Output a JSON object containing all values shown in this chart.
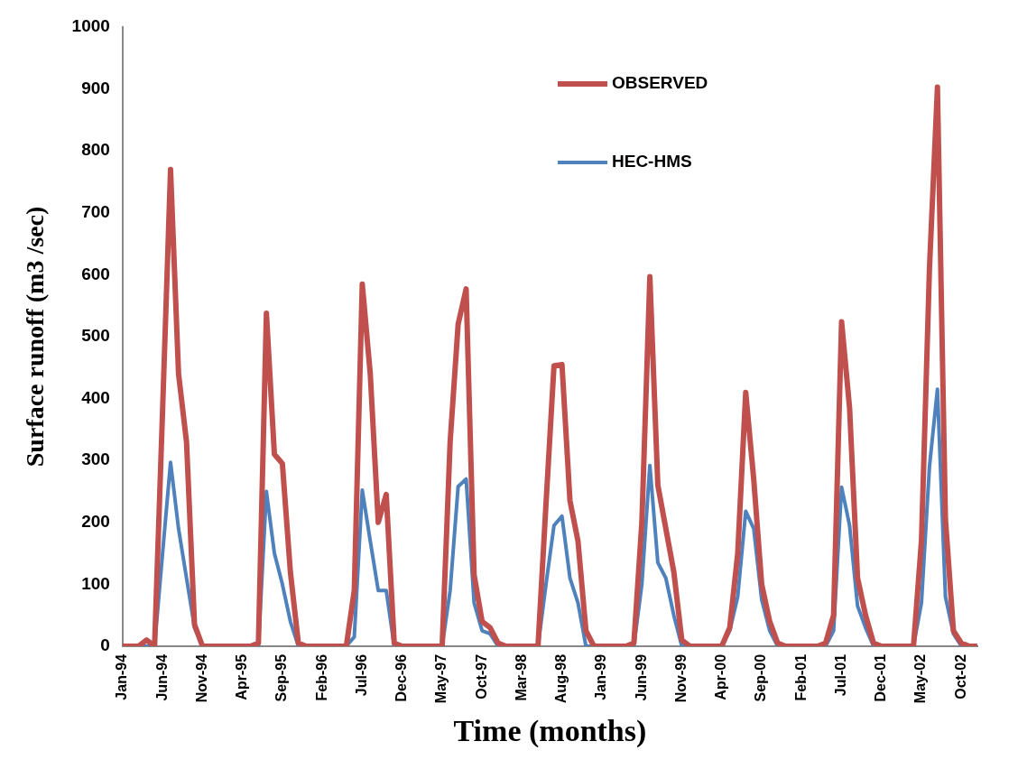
{
  "chart_data": {
    "type": "line",
    "xlabel": "Time (months)",
    "ylabel": "Surface runoff (m3 /sec)",
    "categories": [
      "Jan-94",
      null,
      null,
      null,
      null,
      "Jun-94",
      null,
      null,
      null,
      null,
      "Nov-94",
      null,
      null,
      null,
      null,
      "Apr-95",
      null,
      null,
      null,
      null,
      "Sep-95",
      null,
      null,
      null,
      null,
      "Feb-96",
      null,
      null,
      null,
      null,
      "Jul-96",
      null,
      null,
      null,
      null,
      "Dec-96",
      null,
      null,
      null,
      null,
      "May-97",
      null,
      null,
      null,
      null,
      "Oct-97",
      null,
      null,
      null,
      null,
      "Mar-98",
      null,
      null,
      null,
      null,
      "Aug-98",
      null,
      null,
      null,
      null,
      "Jan-99",
      null,
      null,
      null,
      null,
      "Jun-99",
      null,
      null,
      null,
      null,
      "Nov-99",
      null,
      null,
      null,
      null,
      "Apr-00",
      null,
      null,
      null,
      null,
      "Sep-00",
      null,
      null,
      null,
      null,
      "Feb-01",
      null,
      null,
      null,
      null,
      "Jul-01",
      null,
      null,
      null,
      null,
      "Dec-01",
      null,
      null,
      null,
      null,
      "May-02",
      null,
      null,
      null,
      null,
      "Oct-02",
      null,
      null
    ],
    "series": [
      {
        "name": "OBSERVED",
        "color": "#c0504d",
        "values": [
          0,
          0,
          0,
          10,
          0,
          380,
          770,
          440,
          330,
          35,
          0,
          0,
          0,
          0,
          0,
          0,
          0,
          5,
          538,
          310,
          295,
          120,
          5,
          0,
          0,
          0,
          0,
          0,
          0,
          90,
          585,
          440,
          200,
          245,
          5,
          0,
          0,
          0,
          0,
          0,
          0,
          330,
          520,
          577,
          115,
          40,
          30,
          5,
          0,
          0,
          0,
          0,
          0,
          230,
          453,
          455,
          235,
          170,
          25,
          0,
          0,
          0,
          0,
          0,
          5,
          200,
          597,
          260,
          190,
          120,
          10,
          0,
          0,
          0,
          0,
          0,
          30,
          150,
          410,
          270,
          100,
          40,
          5,
          0,
          0,
          0,
          0,
          0,
          5,
          50,
          524,
          385,
          110,
          50,
          5,
          0,
          0,
          0,
          0,
          0,
          170,
          610,
          903,
          205,
          25,
          5,
          0,
          0
        ]
      },
      {
        "name": "HEC-HMS",
        "color": "#4f81bd",
        "values": [
          0,
          0,
          0,
          0,
          0,
          150,
          297,
          190,
          110,
          30,
          0,
          0,
          0,
          0,
          0,
          0,
          0,
          0,
          250,
          150,
          100,
          40,
          0,
          0,
          0,
          0,
          0,
          0,
          0,
          15,
          252,
          170,
          90,
          90,
          0,
          0,
          0,
          0,
          0,
          0,
          0,
          90,
          258,
          270,
          70,
          25,
          20,
          0,
          0,
          0,
          0,
          0,
          0,
          100,
          195,
          210,
          110,
          70,
          0,
          0,
          0,
          0,
          0,
          0,
          0,
          100,
          292,
          135,
          110,
          50,
          0,
          0,
          0,
          0,
          0,
          0,
          25,
          80,
          218,
          190,
          75,
          25,
          0,
          0,
          0,
          0,
          0,
          0,
          0,
          25,
          257,
          195,
          65,
          30,
          0,
          0,
          0,
          0,
          0,
          0,
          70,
          290,
          415,
          80,
          20,
          0,
          0,
          0
        ]
      }
    ],
    "ylim": [
      0,
      1000
    ],
    "yticks": [
      0,
      100,
      200,
      300,
      400,
      500,
      600,
      700,
      800,
      900,
      1000
    ],
    "grid": false,
    "legend": "top right",
    "marker": "none",
    "line_style": "solid"
  }
}
